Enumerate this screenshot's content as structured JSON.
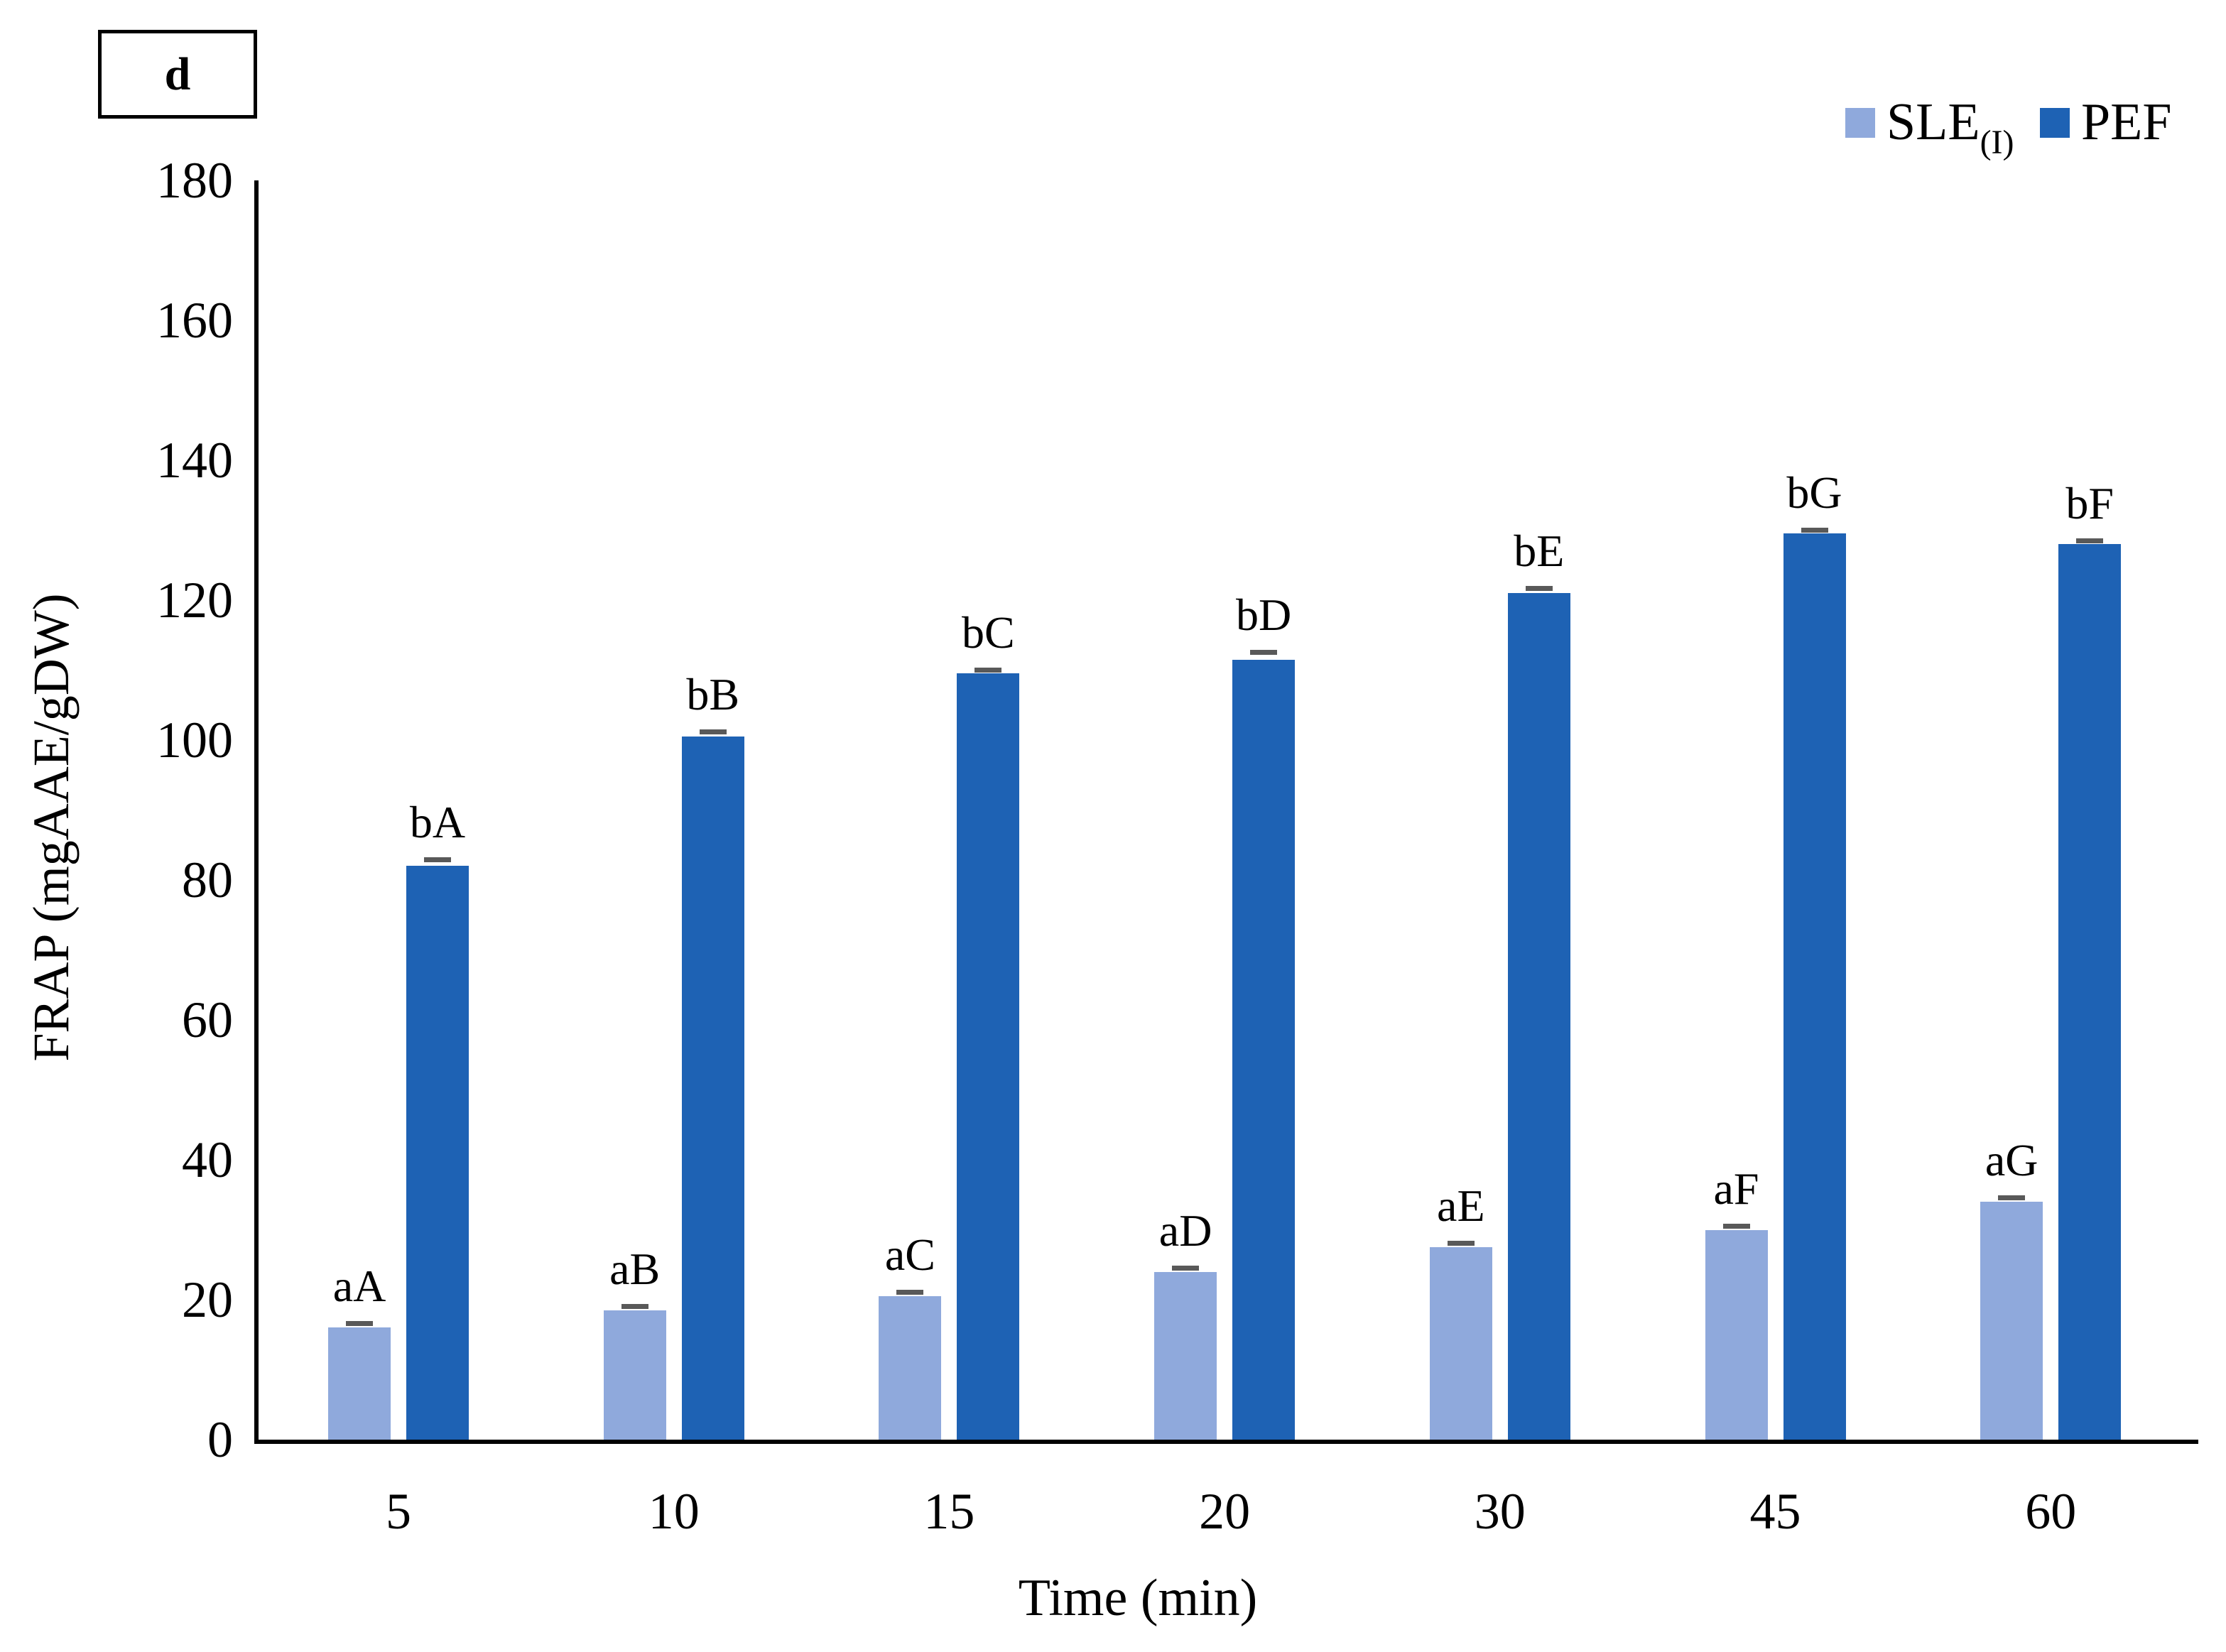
{
  "panel_label": "d",
  "legend": {
    "items": [
      {
        "label": "SLE",
        "sub": "(I)",
        "color": "#8FA9DC"
      },
      {
        "label": "PEF",
        "sub": "",
        "color": "#1E62B4"
      }
    ]
  },
  "chart_data": {
    "type": "bar",
    "title": "",
    "xlabel": "Time (min)",
    "ylabel": "FRAP (mgAAE/gDW)",
    "categories": [
      "5",
      "10",
      "15",
      "20",
      "30",
      "45",
      "60"
    ],
    "ylim": [
      0,
      180
    ],
    "ytick_step": 20,
    "grid": false,
    "legend_position": "top-right",
    "series": [
      {
        "name": "SLE(I)",
        "color": "#8FA9DC",
        "values": [
          16,
          18.5,
          20.5,
          24,
          27.5,
          30,
          34
        ],
        "errors": [
          0.5,
          0.5,
          0.5,
          0.5,
          0.5,
          0.5,
          0.5
        ],
        "bar_labels": [
          "aA",
          "aB",
          "aC",
          "aD",
          "aE",
          "aF",
          "aG"
        ]
      },
      {
        "name": "PEF",
        "color": "#1E62B4",
        "values": [
          82,
          100.5,
          109.5,
          111.5,
          121,
          129.5,
          128
        ],
        "errors": [
          0.8,
          0.6,
          0.4,
          1.0,
          0.6,
          0.5,
          0.4
        ],
        "bar_labels": [
          "bA",
          "bB",
          "bC",
          "bD",
          "bE",
          "bG",
          "bF"
        ]
      }
    ],
    "error_bar_color": "#595959"
  }
}
